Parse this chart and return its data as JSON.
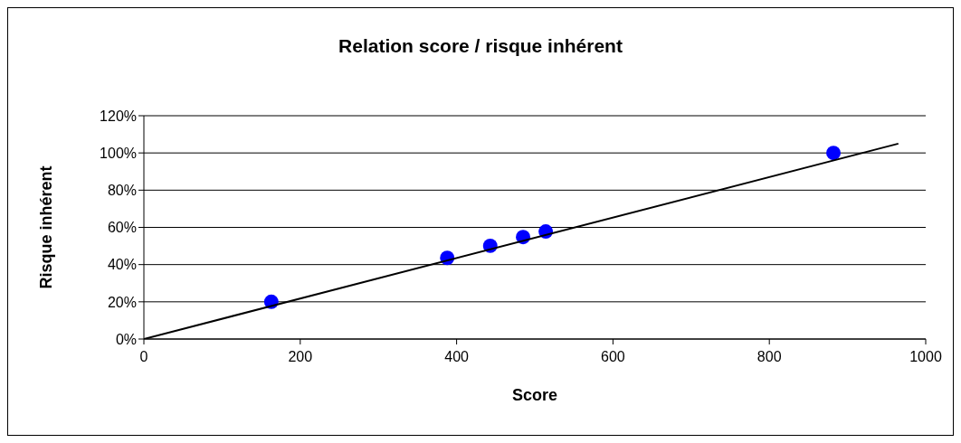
{
  "chart_data": {
    "type": "scatter",
    "title": "Relation score / risque inhérent",
    "xlabel": "Score",
    "ylabel": "Risque inhérent",
    "x": [
      163,
      388,
      443,
      485,
      514,
      882
    ],
    "series": [
      {
        "type": "scatter",
        "color": "#0000ff",
        "marker": "circle",
        "values": [
          20,
          43.6,
          50.1,
          54.8,
          57.8,
          100
        ]
      },
      {
        "type": "line",
        "color": "#000000",
        "marker": "none",
        "x": [
          0,
          965
        ],
        "values": [
          0,
          105
        ]
      }
    ],
    "xlim": [
      0,
      1000
    ],
    "xticks": [
      0,
      200,
      400,
      600,
      800,
      1000
    ],
    "ylim": [
      0,
      120
    ],
    "yticks": [
      {
        "value": 0,
        "label": "0%"
      },
      {
        "value": 20,
        "label": "20%"
      },
      {
        "value": 40,
        "label": "40%"
      },
      {
        "value": 60,
        "label": "60%"
      },
      {
        "value": 80,
        "label": "80%"
      },
      {
        "value": 100,
        "label": "100%"
      },
      {
        "value": 120,
        "label": "120%"
      }
    ],
    "grid": "y"
  }
}
